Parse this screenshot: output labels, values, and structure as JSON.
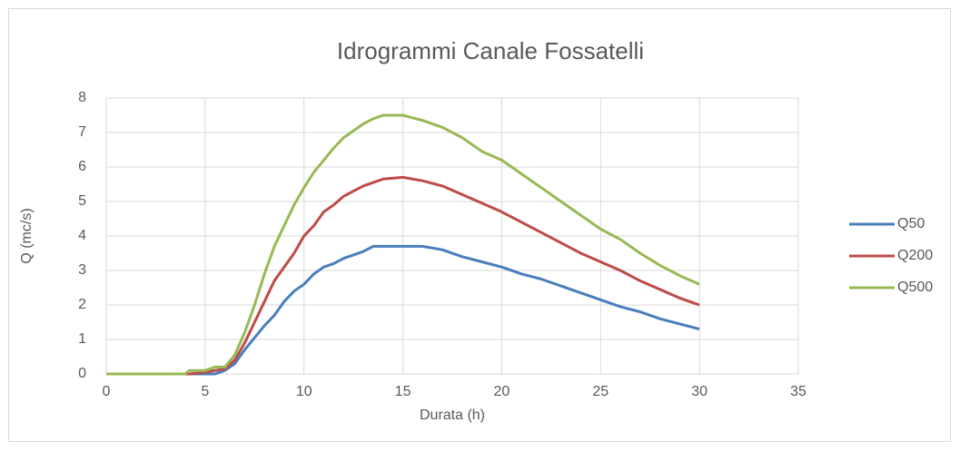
{
  "chart_data": {
    "type": "line",
    "title": "Idrogrammi Canale Fossatelli",
    "x_label": "Durata (h)",
    "y_label": "Q (mc/s)",
    "x": [
      0,
      4,
      4.2,
      5,
      5.5,
      6,
      6.5,
      7,
      7.5,
      8,
      8.5,
      9,
      9.5,
      10,
      10.5,
      11,
      11.5,
      12,
      12.5,
      13,
      13.5,
      14,
      15,
      16,
      17,
      18,
      19,
      20,
      21,
      22,
      23,
      24,
      25,
      26,
      27,
      28,
      29,
      30
    ],
    "series": [
      {
        "name": "Q50",
        "color": "#4a7ebb",
        "values": [
          0,
          0,
          0,
          0,
          0,
          0.1,
          0.3,
          0.7,
          1.05,
          1.4,
          1.7,
          2.1,
          2.4,
          2.6,
          2.9,
          3.1,
          3.2,
          3.35,
          3.45,
          3.55,
          3.7,
          3.7,
          3.7,
          3.7,
          3.6,
          3.4,
          3.25,
          3.1,
          2.9,
          2.75,
          2.55,
          2.35,
          2.15,
          1.95,
          1.8,
          1.6,
          1.45,
          1.3
        ]
      },
      {
        "name": "Q200",
        "color": "#be4b48",
        "values": [
          0,
          0,
          0,
          0.05,
          0.1,
          0.15,
          0.4,
          0.9,
          1.5,
          2.1,
          2.7,
          3.1,
          3.5,
          4.0,
          4.3,
          4.7,
          4.9,
          5.15,
          5.3,
          5.45,
          5.55,
          5.65,
          5.7,
          5.6,
          5.45,
          5.2,
          4.95,
          4.7,
          4.4,
          4.1,
          3.8,
          3.5,
          3.25,
          3.0,
          2.7,
          2.45,
          2.2,
          2.0
        ]
      },
      {
        "name": "Q500",
        "color": "#98b954",
        "values": [
          0,
          0,
          0.1,
          0.1,
          0.2,
          0.2,
          0.55,
          1.2,
          2.0,
          2.9,
          3.7,
          4.3,
          4.9,
          5.4,
          5.85,
          6.2,
          6.55,
          6.85,
          7.05,
          7.25,
          7.4,
          7.5,
          7.5,
          7.35,
          7.15,
          6.85,
          6.45,
          6.2,
          5.8,
          5.4,
          5.0,
          4.6,
          4.2,
          3.9,
          3.5,
          3.15,
          2.85,
          2.6
        ]
      }
    ],
    "xlim": [
      0,
      35
    ],
    "xticks": [
      0,
      5,
      10,
      15,
      20,
      25,
      30,
      35
    ],
    "ylim": [
      0,
      8
    ],
    "yticks": [
      0,
      1,
      2,
      3,
      4,
      5,
      6,
      7,
      8
    ],
    "grid": true,
    "legend": "right"
  }
}
